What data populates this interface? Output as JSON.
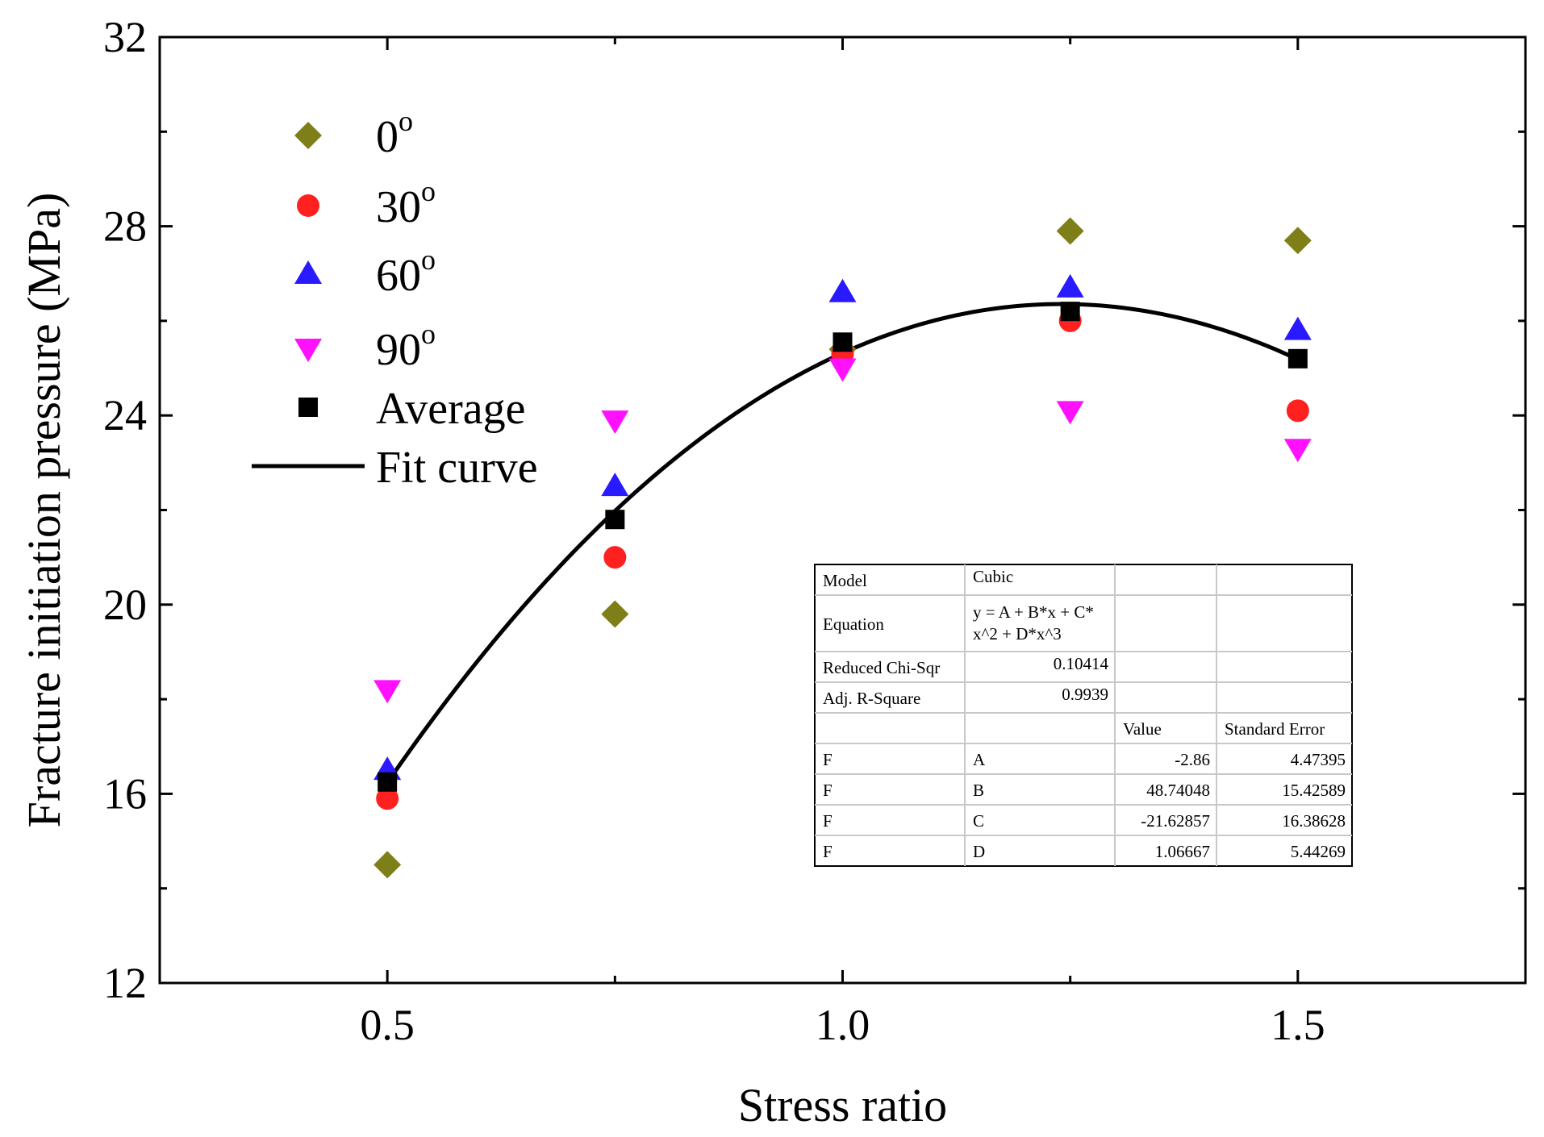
{
  "chart_data": {
    "type": "scatter",
    "xlabel": "Stress ratio",
    "ylabel": "Fracture initiation pressure (MPa)",
    "xlim": [
      0.25,
      1.75
    ],
    "ylim": [
      12,
      32
    ],
    "x_ticks": [
      0.5,
      1.0,
      1.5
    ],
    "x_tick_labels": [
      "0.5",
      "1.0",
      "1.5"
    ],
    "y_ticks": [
      12,
      16,
      20,
      24,
      28,
      32
    ],
    "y_tick_labels": [
      "12",
      "16",
      "20",
      "24",
      "28",
      "32"
    ],
    "legend_position": "top-left",
    "series": [
      {
        "name": "0",
        "sup": "o",
        "marker": "diamond",
        "color": "#7f7f19",
        "x": [
          0.5,
          0.75,
          1.0,
          1.25,
          1.5
        ],
        "y": [
          14.5,
          19.8,
          25.4,
          27.9,
          27.7
        ]
      },
      {
        "name": "30",
        "sup": "o",
        "marker": "circle",
        "color": "#ff2020",
        "x": [
          0.5,
          0.75,
          1.0,
          1.25,
          1.5
        ],
        "y": [
          15.9,
          21.0,
          25.3,
          26.0,
          24.1
        ]
      },
      {
        "name": "60",
        "sup": "o",
        "marker": "triangle-up",
        "color": "#2a1aff",
        "x": [
          0.5,
          0.75,
          1.0,
          1.25,
          1.5
        ],
        "y": [
          16.5,
          22.5,
          26.6,
          26.7,
          25.8
        ]
      },
      {
        "name": "90",
        "sup": "o",
        "marker": "triangle-down",
        "color": "#ff10ff",
        "x": [
          0.5,
          0.75,
          1.0,
          1.25,
          1.5
        ],
        "y": [
          18.2,
          23.9,
          25.0,
          24.1,
          23.3
        ]
      },
      {
        "name": "Average",
        "sup": "",
        "marker": "square",
        "color": "#000000",
        "x": [
          0.5,
          0.75,
          1.0,
          1.25,
          1.5
        ],
        "y": [
          16.25,
          21.8,
          25.55,
          26.2,
          25.2
        ]
      }
    ],
    "fit_curve": {
      "name": "Fit curve",
      "model": "Cubic",
      "color": "#000000",
      "x_range": [
        0.5,
        1.5
      ],
      "coefficients": {
        "A": -2.86,
        "B": 48.74048,
        "C": -21.62857,
        "D": 1.06667
      }
    },
    "stats_table": {
      "rows": [
        [
          "Model",
          "Cubic",
          "",
          ""
        ],
        [
          "Equation",
          "y = A + B*x + C*\nx^2 + D*x^3",
          "",
          ""
        ],
        [
          "Reduced Chi-Sqr",
          "0.10414",
          "",
          ""
        ],
        [
          "Adj. R-Square",
          "0.9939",
          "",
          ""
        ],
        [
          "",
          "",
          "Value",
          "Standard Error"
        ],
        [
          "F",
          "A",
          "-2.86",
          "4.47395"
        ],
        [
          "F",
          "B",
          "48.74048",
          "15.42589"
        ],
        [
          "F",
          "C",
          "-21.62857",
          "16.38628"
        ],
        [
          "F",
          "D",
          "1.06667",
          "5.44269"
        ]
      ]
    }
  }
}
